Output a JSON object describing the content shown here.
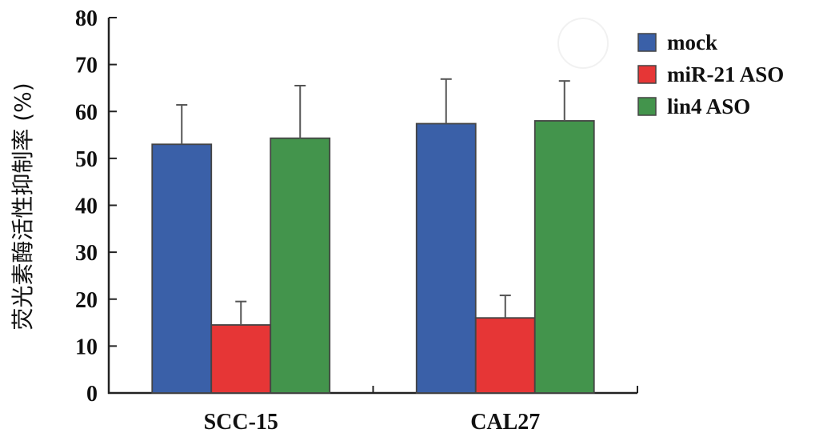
{
  "chart_data": {
    "type": "bar",
    "title": "",
    "xlabel": "",
    "ylabel": "荧光素酶活性抑制率 (%)",
    "ylim": [
      0,
      80
    ],
    "yticks": [
      0,
      10,
      20,
      30,
      40,
      50,
      60,
      70,
      80
    ],
    "categories": [
      "SCC-15",
      "CAL27"
    ],
    "series": [
      {
        "name": "mock",
        "color": "#3a60a8",
        "values": [
          53,
          57.4
        ],
        "error_upper": [
          61.4,
          66.9
        ]
      },
      {
        "name": "miR-21 ASO",
        "color": "#e63636",
        "values": [
          14.5,
          16
        ],
        "error_upper": [
          19.5,
          20.8
        ]
      },
      {
        "name": "lin4 ASO",
        "color": "#43944c",
        "values": [
          54.3,
          58
        ],
        "error_upper": [
          65.5,
          66.5
        ]
      }
    ],
    "legend_position": "top-right",
    "grid": false
  }
}
